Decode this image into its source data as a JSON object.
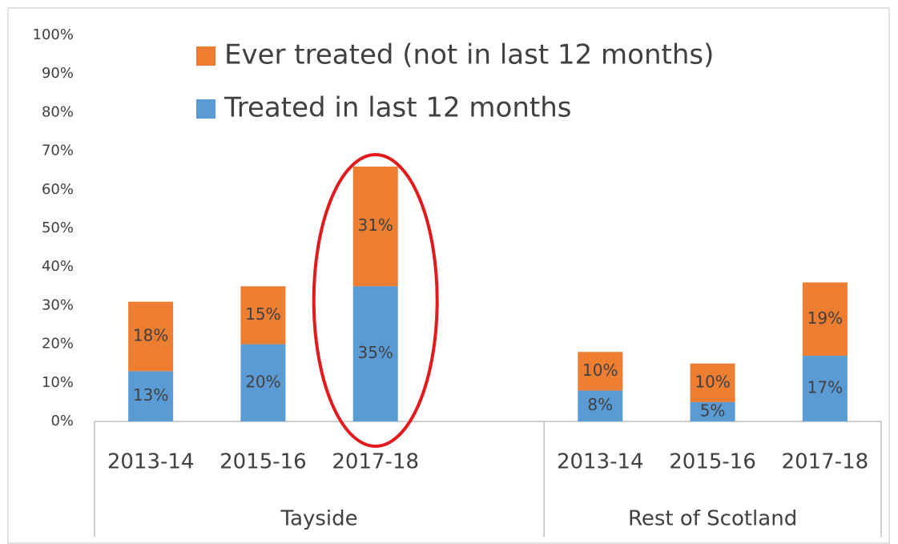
{
  "chart_data": {
    "type": "stacked-bar",
    "groups": [
      {
        "label": "Tayside",
        "categories": [
          "2013-14",
          "2015-16",
          "2017-18",
          null
        ]
      },
      {
        "label": "Rest of Scotland",
        "categories": [
          "2013-14",
          "2015-16",
          "2017-18"
        ]
      }
    ],
    "series": [
      {
        "name": "Treated in last 12 months",
        "color": "#5b9bd5",
        "values": [
          13,
          20,
          35,
          null,
          8,
          5,
          17
        ],
        "value_labels": [
          "13%",
          "20%",
          "35%",
          null,
          "8%",
          "5%",
          "17%"
        ]
      },
      {
        "name": "Ever treated (not in last 12 months)",
        "color": "#ed7d31",
        "values": [
          18,
          15,
          31,
          null,
          10,
          10,
          19
        ],
        "value_labels": [
          "18%",
          "15%",
          "31%",
          null,
          "10%",
          "10%",
          "19%"
        ]
      }
    ],
    "ylim": [
      0,
      100
    ],
    "yticks": [
      {
        "value": 0,
        "label": "0%"
      },
      {
        "value": 10,
        "label": "10%"
      },
      {
        "value": 20,
        "label": "20%"
      },
      {
        "value": 30,
        "label": "30%"
      },
      {
        "value": 40,
        "label": "40%"
      },
      {
        "value": 50,
        "label": "50%"
      },
      {
        "value": 60,
        "label": "60%"
      },
      {
        "value": 70,
        "label": "70%"
      },
      {
        "value": 80,
        "label": "80%"
      },
      {
        "value": 90,
        "label": "90%"
      },
      {
        "value": 100,
        "label": "100%"
      }
    ],
    "grid": false
  }
}
